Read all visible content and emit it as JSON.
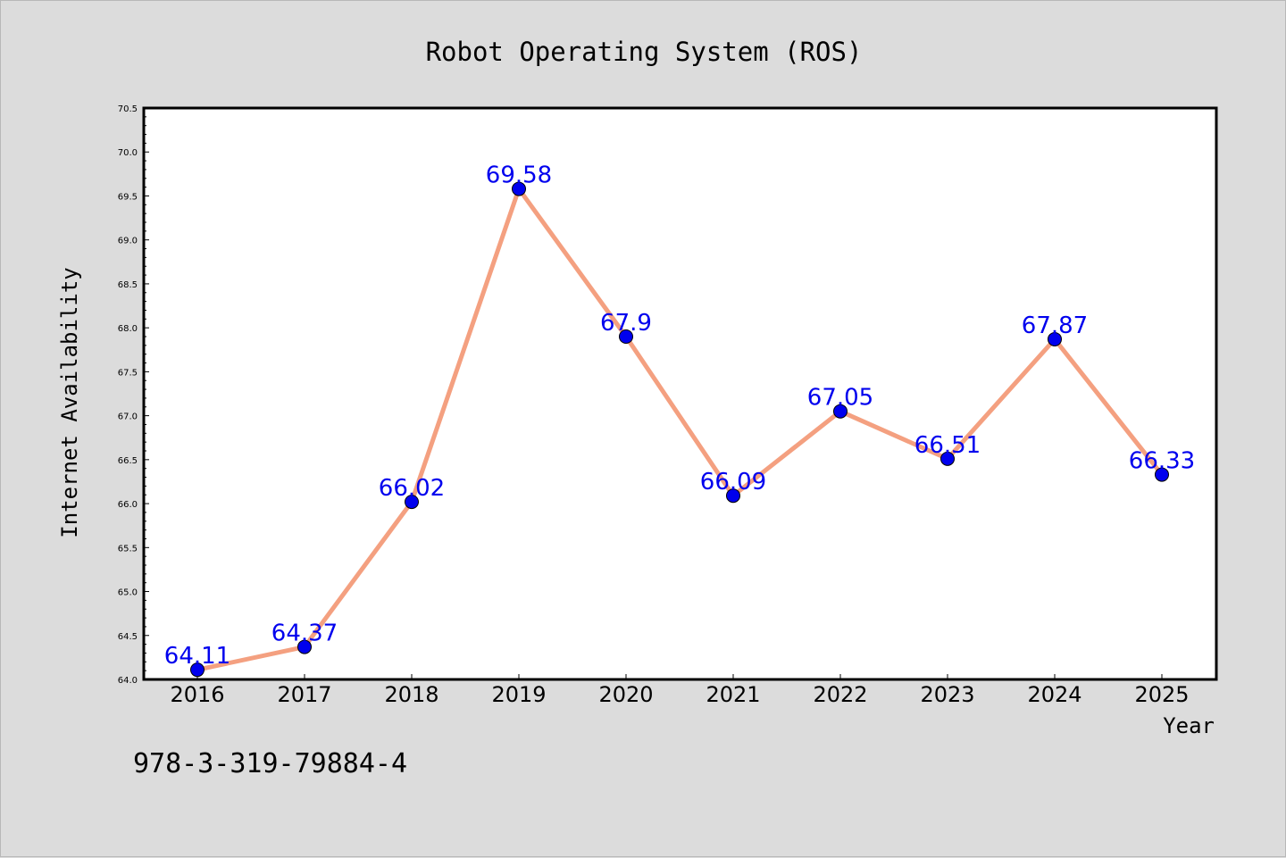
{
  "chart_data": {
    "type": "line",
    "title": "Robot Operating System (ROS)",
    "xlabel": "Year",
    "ylabel": "Internet Availability",
    "categories": [
      "2016",
      "2017",
      "2018",
      "2019",
      "2020",
      "2021",
      "2022",
      "2023",
      "2024",
      "2025"
    ],
    "series": [
      {
        "values": [
          64.11,
          64.37,
          66.02,
          69.58,
          67.9,
          66.09,
          67.05,
          66.51,
          67.87,
          66.33
        ],
        "labels": [
          "64.11",
          "64.37",
          "66.02",
          "69.58",
          "67.9",
          "66.09",
          "67.05",
          "66.51",
          "67.87",
          "66.33"
        ],
        "line_color": "#f4a080",
        "marker_color": "#0000ee",
        "label_color": "#0000ee"
      }
    ],
    "ylim": [
      64.0,
      70.5
    ],
    "yticks": [
      "64.0",
      "64.5",
      "65.0",
      "65.5",
      "66.0",
      "66.5",
      "67.0",
      "67.5",
      "68.0",
      "68.5",
      "69.0",
      "69.5",
      "70.0",
      "70.5"
    ],
    "grid": false,
    "legend": "none"
  },
  "footer": {
    "isbn": "978-3-319-79884-4"
  },
  "colors": {
    "background": "#dcdcdc",
    "plot_background": "#ffffff",
    "axis": "#000000"
  }
}
